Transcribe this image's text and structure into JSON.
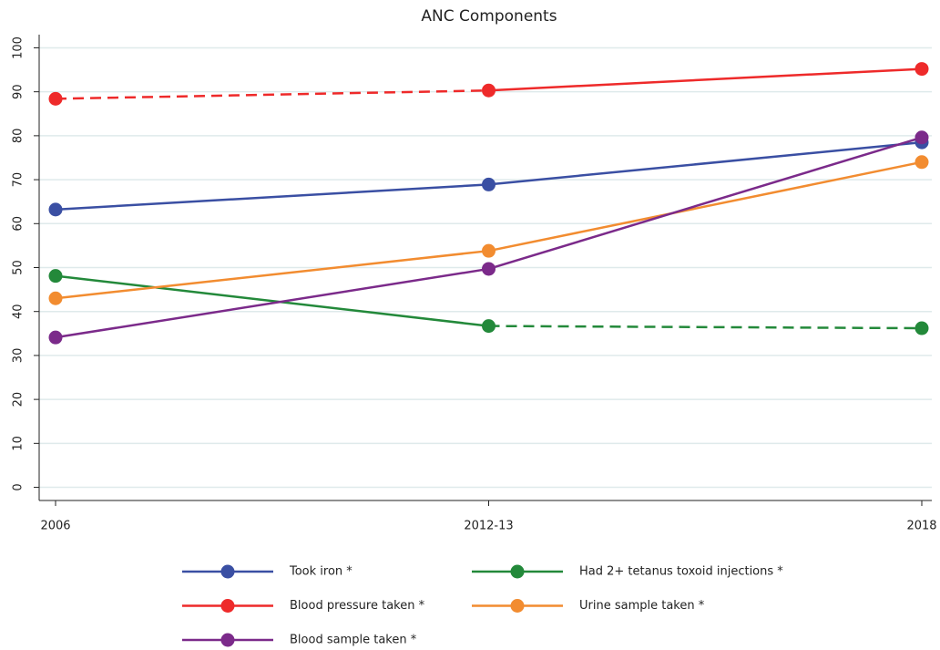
{
  "chart_data": {
    "type": "line",
    "title": "ANC Components",
    "categories": [
      "2006",
      "2012-13",
      "2018"
    ],
    "series": [
      {
        "name": "Took iron *",
        "color": "#3a4fa3",
        "values": [
          63.2,
          68.9,
          78.5
        ],
        "dashed_segments": []
      },
      {
        "name": "Had 2+ tetanus toxoid injections *",
        "color": "#23893a",
        "values": [
          48.1,
          36.7,
          36.2
        ],
        "dashed_segments": [
          1
        ]
      },
      {
        "name": "Blood pressure taken *",
        "color": "#ee2a2a",
        "values": [
          88.4,
          90.3,
          95.2
        ],
        "dashed_segments": [
          0
        ]
      },
      {
        "name": "Urine sample taken *",
        "color": "#f28c30",
        "values": [
          43.0,
          53.8,
          74.0
        ],
        "dashed_segments": []
      },
      {
        "name": "Blood sample taken *",
        "color": "#7b2a8a",
        "values": [
          34.1,
          49.7,
          79.6
        ],
        "dashed_segments": []
      }
    ],
    "ylim": [
      -3,
      103
    ],
    "yticks": [
      0,
      10,
      20,
      30,
      40,
      50,
      60,
      70,
      80,
      90,
      100
    ],
    "grid": true,
    "legend": "bottom"
  }
}
